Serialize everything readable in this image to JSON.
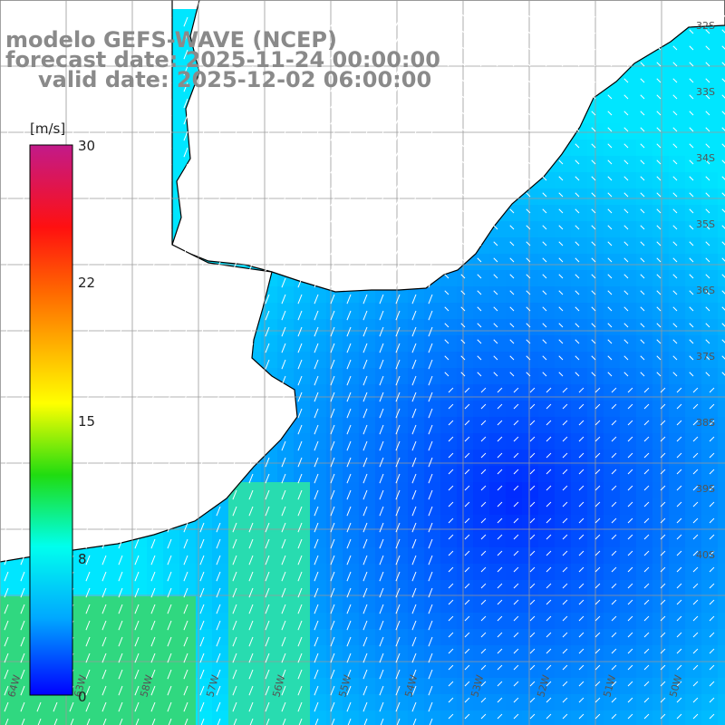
{
  "header": {
    "line1": "modelo GEFS-WAVE (NCEP)",
    "line2": "forecast date: 2025-11-24 00:00:00",
    "line3": "valid date: 2025-12-02 06:00:00"
  },
  "colorbar": {
    "unit": "[m/s]",
    "ticks": [
      "30",
      "22",
      "15",
      "8",
      "0"
    ],
    "colors": [
      "#c21a8a",
      "#ff0000",
      "#ff8a00",
      "#ffff00",
      "#18d818",
      "#00ffee",
      "#00a0ff",
      "#0000ff"
    ]
  },
  "map": {
    "lon_labels": [
      "64W",
      "63W",
      "58W",
      "57W",
      "56W",
      "55W",
      "54W",
      "53W",
      "52W",
      "51W",
      "50W"
    ],
    "lat_labels": [
      "32S",
      "33S",
      "34S",
      "35S",
      "36S",
      "37S",
      "38S",
      "39S",
      "40S"
    ],
    "land_color": "#ffffff",
    "grid_color": "#9a9a9a"
  }
}
